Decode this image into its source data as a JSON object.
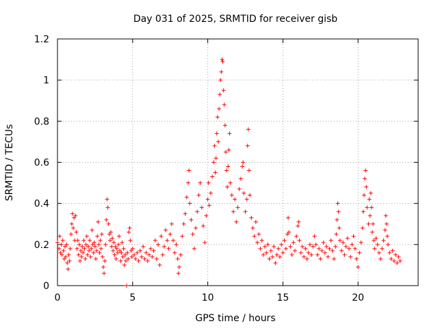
{
  "chart_data": {
    "type": "scatter",
    "title": "Day 031 of 2025, SRMTID for receiver gisb",
    "xlabel": "GPS time / hours",
    "ylabel": "SRMTID / TECUs",
    "xlim": [
      0,
      24
    ],
    "ylim": [
      0,
      1.2
    ],
    "xticks": [
      0,
      5,
      10,
      15,
      20
    ],
    "xtick_labels": [
      "0",
      "5",
      "10",
      "15",
      "20"
    ],
    "yticks": [
      0,
      0.2,
      0.4,
      0.6,
      0.8,
      1,
      1.2
    ],
    "ytick_labels": [
      "0",
      "0.2",
      "0.4",
      "0.6",
      "0.8",
      "1",
      "1.2"
    ],
    "grid": true,
    "marker": "plus",
    "color": "#ff0000",
    "series": [
      {
        "name": "SRMTID",
        "points": [
          [
            0.0,
            0.21
          ],
          [
            0.1,
            0.18
          ],
          [
            0.15,
            0.24
          ],
          [
            0.2,
            0.16
          ],
          [
            0.25,
            0.2
          ],
          [
            0.3,
            0.15
          ],
          [
            0.35,
            0.22
          ],
          [
            0.4,
            0.17
          ],
          [
            0.45,
            0.13
          ],
          [
            0.5,
            0.19
          ],
          [
            0.55,
            0.14
          ],
          [
            0.6,
            0.2
          ],
          [
            0.65,
            0.11
          ],
          [
            0.7,
            0.08
          ],
          [
            0.75,
            0.15
          ],
          [
            0.8,
            0.12
          ],
          [
            0.85,
            0.18
          ],
          [
            0.9,
            0.25
          ],
          [
            0.95,
            0.3
          ],
          [
            1.0,
            0.35
          ],
          [
            1.05,
            0.28
          ],
          [
            1.1,
            0.33
          ],
          [
            1.15,
            0.22
          ],
          [
            1.2,
            0.34
          ],
          [
            1.25,
            0.26
          ],
          [
            1.3,
            0.18
          ],
          [
            1.35,
            0.22
          ],
          [
            1.4,
            0.15
          ],
          [
            1.45,
            0.2
          ],
          [
            1.5,
            0.12
          ],
          [
            1.55,
            0.17
          ],
          [
            1.6,
            0.14
          ],
          [
            1.65,
            0.19
          ],
          [
            1.7,
            0.16
          ],
          [
            1.75,
            0.22
          ],
          [
            1.8,
            0.18
          ],
          [
            1.85,
            0.13
          ],
          [
            1.9,
            0.2
          ],
          [
            1.95,
            0.24
          ],
          [
            2.0,
            0.15
          ],
          [
            2.05,
            0.19
          ],
          [
            2.1,
            0.17
          ],
          [
            2.15,
            0.22
          ],
          [
            2.2,
            0.14
          ],
          [
            2.25,
            0.18
          ],
          [
            2.3,
            0.27
          ],
          [
            2.35,
            0.2
          ],
          [
            2.4,
            0.16
          ],
          [
            2.45,
            0.21
          ],
          [
            2.5,
            0.19
          ],
          [
            2.55,
            0.13
          ],
          [
            2.6,
            0.17
          ],
          [
            2.65,
            0.24
          ],
          [
            2.7,
            0.31
          ],
          [
            2.75,
            0.2
          ],
          [
            2.8,
            0.16
          ],
          [
            2.85,
            0.22
          ],
          [
            2.9,
            0.18
          ],
          [
            2.95,
            0.25
          ],
          [
            3.0,
            0.14
          ],
          [
            3.05,
            0.09
          ],
          [
            3.1,
            0.06
          ],
          [
            3.15,
            0.12
          ],
          [
            3.2,
            0.2
          ],
          [
            3.25,
            0.32
          ],
          [
            3.3,
            0.42
          ],
          [
            3.35,
            0.38
          ],
          [
            3.4,
            0.3
          ],
          [
            3.45,
            0.25
          ],
          [
            3.5,
            0.22
          ],
          [
            3.55,
            0.26
          ],
          [
            3.6,
            0.19
          ],
          [
            3.65,
            0.23
          ],
          [
            3.7,
            0.17
          ],
          [
            3.75,
            0.21
          ],
          [
            3.8,
            0.15
          ],
          [
            3.85,
            0.19
          ],
          [
            3.9,
            0.13
          ],
          [
            3.95,
            0.18
          ],
          [
            4.0,
            0.16
          ],
          [
            4.05,
            0.2
          ],
          [
            4.1,
            0.24
          ],
          [
            4.15,
            0.17
          ],
          [
            4.2,
            0.12
          ],
          [
            4.25,
            0.16
          ],
          [
            4.3,
            0.21
          ],
          [
            4.35,
            0.14
          ],
          [
            4.4,
            0.18
          ],
          [
            4.45,
            0.1
          ],
          [
            4.5,
            0.15
          ],
          [
            4.55,
            0.12
          ],
          [
            4.6,
            0.0
          ],
          [
            4.65,
            0.16
          ],
          [
            4.7,
            0.13
          ],
          [
            4.75,
            0.26
          ],
          [
            4.8,
            0.28
          ],
          [
            4.85,
            0.22
          ],
          [
            4.9,
            0.17
          ],
          [
            4.95,
            0.14
          ],
          [
            5.0,
            0.18
          ],
          [
            5.1,
            0.15
          ],
          [
            5.2,
            0.13
          ],
          [
            5.3,
            0.16
          ],
          [
            5.4,
            0.12
          ],
          [
            5.5,
            0.17
          ],
          [
            5.6,
            0.14
          ],
          [
            5.7,
            0.19
          ],
          [
            5.8,
            0.13
          ],
          [
            5.9,
            0.16
          ],
          [
            6.0,
            0.12
          ],
          [
            6.1,
            0.15
          ],
          [
            6.2,
            0.18
          ],
          [
            6.3,
            0.14
          ],
          [
            6.4,
            0.17
          ],
          [
            6.5,
            0.22
          ],
          [
            6.6,
            0.13
          ],
          [
            6.7,
            0.2
          ],
          [
            6.8,
            0.1
          ],
          [
            6.9,
            0.24
          ],
          [
            7.0,
            0.15
          ],
          [
            7.1,
            0.19
          ],
          [
            7.2,
            0.27
          ],
          [
            7.3,
            0.22
          ],
          [
            7.4,
            0.18
          ],
          [
            7.5,
            0.25
          ],
          [
            7.6,
            0.3
          ],
          [
            7.7,
            0.22
          ],
          [
            7.8,
            0.16
          ],
          [
            7.9,
            0.2
          ],
          [
            8.0,
            0.13
          ],
          [
            8.05,
            0.06
          ],
          [
            8.1,
            0.09
          ],
          [
            8.2,
            0.15
          ],
          [
            8.3,
            0.24
          ],
          [
            8.4,
            0.3
          ],
          [
            8.5,
            0.35
          ],
          [
            8.6,
            0.43
          ],
          [
            8.7,
            0.5
          ],
          [
            8.75,
            0.56
          ],
          [
            8.8,
            0.4
          ],
          [
            8.9,
            0.32
          ],
          [
            9.0,
            0.25
          ],
          [
            9.1,
            0.18
          ],
          [
            9.2,
            0.28
          ],
          [
            9.3,
            0.36
          ],
          [
            9.4,
            0.44
          ],
          [
            9.5,
            0.5
          ],
          [
            9.6,
            0.38
          ],
          [
            9.7,
            0.29
          ],
          [
            9.8,
            0.21
          ],
          [
            9.9,
            0.34
          ],
          [
            10.0,
            0.42
          ],
          [
            10.05,
            0.5
          ],
          [
            10.1,
            0.39
          ],
          [
            10.2,
            0.45
          ],
          [
            10.3,
            0.53
          ],
          [
            10.4,
            0.6
          ],
          [
            10.45,
            0.68
          ],
          [
            10.5,
            0.55
          ],
          [
            10.55,
            0.62
          ],
          [
            10.6,
            0.74
          ],
          [
            10.65,
            0.82
          ],
          [
            10.7,
            0.7
          ],
          [
            10.75,
            0.86
          ],
          [
            10.8,
            0.93
          ],
          [
            10.85,
            1.0
          ],
          [
            10.9,
            1.04
          ],
          [
            10.95,
            1.1
          ],
          [
            11.0,
            1.09
          ],
          [
            11.05,
            0.95
          ],
          [
            11.1,
            0.88
          ],
          [
            11.15,
            0.78
          ],
          [
            11.2,
            0.65
          ],
          [
            11.25,
            0.56
          ],
          [
            11.3,
            0.48
          ],
          [
            11.35,
            0.58
          ],
          [
            11.4,
            0.66
          ],
          [
            11.45,
            0.74
          ],
          [
            11.5,
            0.5
          ],
          [
            11.6,
            0.44
          ],
          [
            11.7,
            0.36
          ],
          [
            11.8,
            0.42
          ],
          [
            11.9,
            0.31
          ],
          [
            12.0,
            0.38
          ],
          [
            12.1,
            0.47
          ],
          [
            12.2,
            0.52
          ],
          [
            12.3,
            0.58
          ],
          [
            12.35,
            0.6
          ],
          [
            12.4,
            0.45
          ],
          [
            12.5,
            0.36
          ],
          [
            12.6,
            0.42
          ],
          [
            12.65,
            0.68
          ],
          [
            12.7,
            0.76
          ],
          [
            12.75,
            0.56
          ],
          [
            12.8,
            0.44
          ],
          [
            12.9,
            0.33
          ],
          [
            13.0,
            0.28
          ],
          [
            13.1,
            0.24
          ],
          [
            13.2,
            0.31
          ],
          [
            13.3,
            0.21
          ],
          [
            13.4,
            0.25
          ],
          [
            13.5,
            0.18
          ],
          [
            13.6,
            0.22
          ],
          [
            13.7,
            0.15
          ],
          [
            13.8,
            0.19
          ],
          [
            13.9,
            0.16
          ],
          [
            14.0,
            0.2
          ],
          [
            14.1,
            0.13
          ],
          [
            14.2,
            0.17
          ],
          [
            14.3,
            0.14
          ],
          [
            14.4,
            0.19
          ],
          [
            14.5,
            0.11
          ],
          [
            14.6,
            0.15
          ],
          [
            14.7,
            0.18
          ],
          [
            14.8,
            0.14
          ],
          [
            14.9,
            0.2
          ],
          [
            15.0,
            0.16
          ],
          [
            15.1,
            0.22
          ],
          [
            15.2,
            0.18
          ],
          [
            15.3,
            0.25
          ],
          [
            15.35,
            0.33
          ],
          [
            15.4,
            0.26
          ],
          [
            15.5,
            0.19
          ],
          [
            15.6,
            0.15
          ],
          [
            15.7,
            0.21
          ],
          [
            15.8,
            0.17
          ],
          [
            15.9,
            0.24
          ],
          [
            16.0,
            0.29
          ],
          [
            16.05,
            0.31
          ],
          [
            16.1,
            0.22
          ],
          [
            16.2,
            0.16
          ],
          [
            16.3,
            0.19
          ],
          [
            16.4,
            0.14
          ],
          [
            16.5,
            0.18
          ],
          [
            16.6,
            0.13
          ],
          [
            16.7,
            0.16
          ],
          [
            16.8,
            0.2
          ],
          [
            16.9,
            0.15
          ],
          [
            17.0,
            0.19
          ],
          [
            17.1,
            0.24
          ],
          [
            17.2,
            0.2
          ],
          [
            17.3,
            0.15
          ],
          [
            17.4,
            0.18
          ],
          [
            17.5,
            0.13
          ],
          [
            17.6,
            0.17
          ],
          [
            17.7,
            0.21
          ],
          [
            17.8,
            0.16
          ],
          [
            17.9,
            0.19
          ],
          [
            18.0,
            0.14
          ],
          [
            18.1,
            0.18
          ],
          [
            18.2,
            0.22
          ],
          [
            18.3,
            0.17
          ],
          [
            18.4,
            0.13
          ],
          [
            18.5,
            0.19
          ],
          [
            18.55,
            0.25
          ],
          [
            18.6,
            0.32
          ],
          [
            18.65,
            0.4
          ],
          [
            18.7,
            0.36
          ],
          [
            18.75,
            0.28
          ],
          [
            18.8,
            0.22
          ],
          [
            18.9,
            0.17
          ],
          [
            19.0,
            0.21
          ],
          [
            19.1,
            0.15
          ],
          [
            19.2,
            0.19
          ],
          [
            19.3,
            0.23
          ],
          [
            19.4,
            0.18
          ],
          [
            19.5,
            0.14
          ],
          [
            19.6,
            0.2
          ],
          [
            19.7,
            0.24
          ],
          [
            19.8,
            0.18
          ],
          [
            19.9,
            0.13
          ],
          [
            20.0,
            0.09
          ],
          [
            20.1,
            0.16
          ],
          [
            20.2,
            0.21
          ],
          [
            20.3,
            0.28
          ],
          [
            20.35,
            0.36
          ],
          [
            20.4,
            0.44
          ],
          [
            20.45,
            0.52
          ],
          [
            20.5,
            0.56
          ],
          [
            20.55,
            0.48
          ],
          [
            20.6,
            0.38
          ],
          [
            20.7,
            0.3
          ],
          [
            20.75,
            0.42
          ],
          [
            20.8,
            0.34
          ],
          [
            20.85,
            0.45
          ],
          [
            20.9,
            0.38
          ],
          [
            20.95,
            0.26
          ],
          [
            21.0,
            0.3
          ],
          [
            21.05,
            0.22
          ],
          [
            21.1,
            0.18
          ],
          [
            21.2,
            0.23
          ],
          [
            21.3,
            0.2
          ],
          [
            21.4,
            0.16
          ],
          [
            21.5,
            0.13
          ],
          [
            21.6,
            0.18
          ],
          [
            21.7,
            0.22
          ],
          [
            21.8,
            0.27
          ],
          [
            21.85,
            0.34
          ],
          [
            21.9,
            0.3
          ],
          [
            21.95,
            0.24
          ],
          [
            22.0,
            0.2
          ],
          [
            22.1,
            0.16
          ],
          [
            22.2,
            0.13
          ],
          [
            22.3,
            0.17
          ],
          [
            22.4,
            0.12
          ],
          [
            22.5,
            0.15
          ],
          [
            22.6,
            0.11
          ],
          [
            22.7,
            0.14
          ],
          [
            22.8,
            0.12
          ]
        ]
      }
    ]
  }
}
